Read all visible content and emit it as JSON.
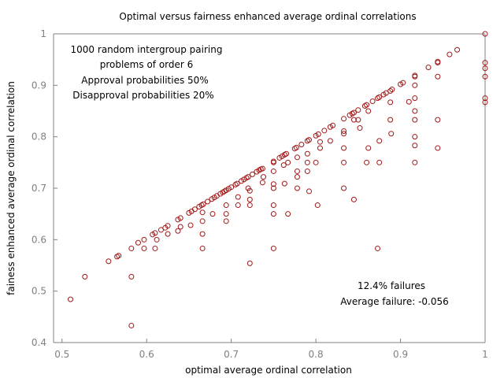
{
  "chart_data": {
    "type": "scatter",
    "title": "Optimal versus fairness enhanced average ordinal correlations",
    "xlabel": "optimal average ordinal correlation",
    "ylabel": "fainess enhanced average ordinal correlation",
    "xlim": [
      0.49,
      1.0
    ],
    "ylim": [
      0.4,
      1.0
    ],
    "xticks": [
      "0.5",
      "0.6",
      "0.7",
      "0.8",
      "0.9",
      "1"
    ],
    "yticks": [
      "0.4",
      "0.5",
      "0.6",
      "0.7",
      "0.8",
      "0.9",
      "1"
    ],
    "grid": false,
    "marker": "open-circle",
    "color": "#a01818",
    "annotations": {
      "left": [
        "1000 random intergroup pairing",
        "problems of order 6",
        "Approval probabilities 50%",
        "Disapproval probabilities 20%"
      ],
      "right": [
        "12.4% failures",
        "Average failure: -0.056"
      ]
    },
    "series": [
      {
        "points": [
          [
            0.51,
            0.484
          ],
          [
            0.527,
            0.528
          ],
          [
            0.555,
            0.558
          ],
          [
            0.565,
            0.567
          ],
          [
            0.567,
            0.569
          ],
          [
            0.582,
            0.583
          ],
          [
            0.582,
            0.528
          ],
          [
            0.582,
            0.433
          ],
          [
            0.59,
            0.594
          ],
          [
            0.597,
            0.6
          ],
          [
            0.597,
            0.583
          ],
          [
            0.607,
            0.61
          ],
          [
            0.61,
            0.613
          ],
          [
            0.61,
            0.583
          ],
          [
            0.612,
            0.6
          ],
          [
            0.617,
            0.619
          ],
          [
            0.622,
            0.623
          ],
          [
            0.625,
            0.627
          ],
          [
            0.625,
            0.611
          ],
          [
            0.637,
            0.639
          ],
          [
            0.64,
            0.642
          ],
          [
            0.637,
            0.617
          ],
          [
            0.64,
            0.625
          ],
          [
            0.65,
            0.652
          ],
          [
            0.653,
            0.655
          ],
          [
            0.652,
            0.628
          ],
          [
            0.657,
            0.659
          ],
          [
            0.662,
            0.664
          ],
          [
            0.665,
            0.667
          ],
          [
            0.667,
            0.669
          ],
          [
            0.666,
            0.653
          ],
          [
            0.666,
            0.636
          ],
          [
            0.666,
            0.611
          ],
          [
            0.666,
            0.583
          ],
          [
            0.672,
            0.674
          ],
          [
            0.677,
            0.679
          ],
          [
            0.68,
            0.682
          ],
          [
            0.678,
            0.65
          ],
          [
            0.683,
            0.685
          ],
          [
            0.687,
            0.689
          ],
          [
            0.69,
            0.692
          ],
          [
            0.692,
            0.694
          ],
          [
            0.694,
            0.696
          ],
          [
            0.694,
            0.667
          ],
          [
            0.694,
            0.65
          ],
          [
            0.694,
            0.636
          ],
          [
            0.697,
            0.699
          ],
          [
            0.7,
            0.702
          ],
          [
            0.705,
            0.707
          ],
          [
            0.707,
            0.709
          ],
          [
            0.708,
            0.683
          ],
          [
            0.708,
            0.667
          ],
          [
            0.712,
            0.714
          ],
          [
            0.715,
            0.717
          ],
          [
            0.718,
            0.72
          ],
          [
            0.72,
            0.722
          ],
          [
            0.72,
            0.7
          ],
          [
            0.722,
            0.695
          ],
          [
            0.722,
            0.678
          ],
          [
            0.722,
            0.667
          ],
          [
            0.722,
            0.554
          ],
          [
            0.725,
            0.727
          ],
          [
            0.73,
            0.732
          ],
          [
            0.733,
            0.735
          ],
          [
            0.735,
            0.737
          ],
          [
            0.737,
            0.738
          ],
          [
            0.737,
            0.711
          ],
          [
            0.738,
            0.722
          ],
          [
            0.75,
            0.752
          ],
          [
            0.75,
            0.75
          ],
          [
            0.75,
            0.733
          ],
          [
            0.75,
            0.708
          ],
          [
            0.75,
            0.7
          ],
          [
            0.75,
            0.667
          ],
          [
            0.75,
            0.65
          ],
          [
            0.75,
            0.583
          ],
          [
            0.757,
            0.759
          ],
          [
            0.76,
            0.762
          ],
          [
            0.762,
            0.745
          ],
          [
            0.763,
            0.765
          ],
          [
            0.765,
            0.767
          ],
          [
            0.763,
            0.709
          ],
          [
            0.767,
            0.75
          ],
          [
            0.767,
            0.65
          ],
          [
            0.775,
            0.777
          ],
          [
            0.777,
            0.779
          ],
          [
            0.778,
            0.76
          ],
          [
            0.778,
            0.733
          ],
          [
            0.778,
            0.722
          ],
          [
            0.778,
            0.7
          ],
          [
            0.783,
            0.785
          ],
          [
            0.79,
            0.792
          ],
          [
            0.792,
            0.794
          ],
          [
            0.79,
            0.767
          ],
          [
            0.79,
            0.75
          ],
          [
            0.79,
            0.733
          ],
          [
            0.792,
            0.694
          ],
          [
            0.8,
            0.802
          ],
          [
            0.803,
            0.805
          ],
          [
            0.8,
            0.75
          ],
          [
            0.802,
            0.667
          ],
          [
            0.805,
            0.79
          ],
          [
            0.805,
            0.778
          ],
          [
            0.81,
            0.812
          ],
          [
            0.817,
            0.819
          ],
          [
            0.82,
            0.822
          ],
          [
            0.817,
            0.792
          ],
          [
            0.833,
            0.835
          ],
          [
            0.833,
            0.811
          ],
          [
            0.833,
            0.806
          ],
          [
            0.833,
            0.778
          ],
          [
            0.833,
            0.75
          ],
          [
            0.833,
            0.7
          ],
          [
            0.84,
            0.842
          ],
          [
            0.843,
            0.845
          ],
          [
            0.845,
            0.847
          ],
          [
            0.845,
            0.833
          ],
          [
            0.845,
            0.678
          ],
          [
            0.85,
            0.852
          ],
          [
            0.85,
            0.833
          ],
          [
            0.852,
            0.817
          ],
          [
            0.858,
            0.86
          ],
          [
            0.86,
            0.862
          ],
          [
            0.86,
            0.75
          ],
          [
            0.862,
            0.85
          ],
          [
            0.862,
            0.778
          ],
          [
            0.867,
            0.869
          ],
          [
            0.873,
            0.875
          ],
          [
            0.875,
            0.877
          ],
          [
            0.875,
            0.792
          ],
          [
            0.875,
            0.75
          ],
          [
            0.873,
            0.583
          ],
          [
            0.88,
            0.882
          ],
          [
            0.883,
            0.885
          ],
          [
            0.888,
            0.889
          ],
          [
            0.89,
            0.892
          ],
          [
            0.888,
            0.867
          ],
          [
            0.888,
            0.833
          ],
          [
            0.889,
            0.806
          ],
          [
            0.9,
            0.902
          ],
          [
            0.903,
            0.905
          ],
          [
            0.91,
            0.868
          ],
          [
            0.917,
            0.919
          ],
          [
            0.917,
            0.917
          ],
          [
            0.917,
            0.9
          ],
          [
            0.917,
            0.875
          ],
          [
            0.917,
            0.85
          ],
          [
            0.917,
            0.833
          ],
          [
            0.917,
            0.8
          ],
          [
            0.917,
            0.783
          ],
          [
            0.917,
            0.75
          ],
          [
            0.933,
            0.935
          ],
          [
            0.944,
            0.946
          ],
          [
            0.944,
            0.944
          ],
          [
            0.944,
            0.917
          ],
          [
            0.944,
            0.833
          ],
          [
            0.944,
            0.778
          ],
          [
            0.958,
            0.96
          ],
          [
            0.967,
            0.969
          ],
          [
            1.0,
            1.0
          ],
          [
            1.0,
            0.944
          ],
          [
            1.0,
            0.933
          ],
          [
            1.0,
            0.917
          ],
          [
            1.0,
            0.875
          ],
          [
            1.0,
            0.867
          ]
        ]
      }
    ]
  }
}
